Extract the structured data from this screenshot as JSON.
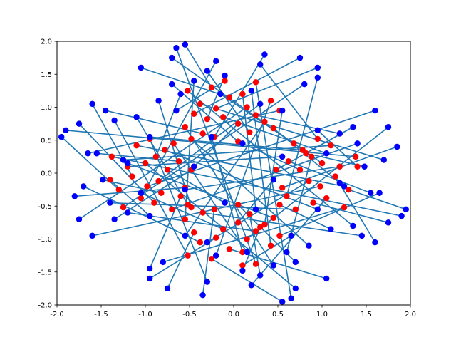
{
  "chart_data": {
    "type": "scatter",
    "title": "",
    "xlabel": "",
    "ylabel": "",
    "xlim": [
      -2.0,
      2.0
    ],
    "ylim": [
      -2.0,
      2.0
    ],
    "x_ticks": [
      "-2.0",
      "-1.5",
      "-1.0",
      "-0.5",
      "0.0",
      "0.5",
      "1.0",
      "1.5",
      "2.0"
    ],
    "y_ticks": [
      "-2.0",
      "-1.5",
      "-1.0",
      "-0.5",
      "0.0",
      "0.5",
      "1.0",
      "1.5",
      "2.0"
    ],
    "grid": false,
    "legend": "none",
    "colors": {
      "source_points": "#ff0000",
      "target_points": "#0000ff",
      "lines": "#1f77b4"
    },
    "cluster_centers": [
      [
        -0.9,
        0.0
      ],
      [
        0.9,
        0.0
      ],
      [
        0.0,
        0.9
      ],
      [
        0.0,
        -0.9
      ]
    ],
    "points": [
      {
        "red": [
          -0.62,
          0.18
        ],
        "blue": [
          -1.55,
          0.3
        ]
      },
      {
        "red": [
          -0.55,
          -0.22
        ],
        "blue": [
          -1.8,
          -0.35
        ]
      },
      {
        "red": [
          -0.78,
          0.35
        ],
        "blue": [
          0.95,
          -0.55
        ]
      },
      {
        "red": [
          -1.05,
          -0.38
        ],
        "blue": [
          -0.2,
          1.7
        ]
      },
      {
        "red": [
          -1.2,
          0.1
        ],
        "blue": [
          0.55,
          0.25
        ]
      },
      {
        "red": [
          -0.95,
          0.52
        ],
        "blue": [
          -0.3,
          -1.65
        ]
      },
      {
        "red": [
          -0.7,
          -0.55
        ],
        "blue": [
          1.4,
          0.45
        ]
      },
      {
        "red": [
          -1.3,
          -0.25
        ],
        "blue": [
          -1.95,
          0.55
        ]
      },
      {
        "red": [
          -0.85,
          -0.12
        ],
        "blue": [
          0.3,
          1.05
        ]
      },
      {
        "red": [
          -1.1,
          0.42
        ],
        "blue": [
          1.25,
          -0.2
        ]
      },
      {
        "red": [
          -0.48,
          0.05
        ],
        "blue": [
          -1.35,
          -0.7
        ]
      },
      {
        "red": [
          -0.88,
          0.25
        ],
        "blue": [
          -0.6,
          1.2
        ]
      },
      {
        "red": [
          -1.25,
          -0.52
        ],
        "blue": [
          0.8,
          1.35
        ]
      },
      {
        "red": [
          -0.6,
          -0.35
        ],
        "blue": [
          -0.95,
          -1.45
        ]
      },
      {
        "red": [
          -1.38,
          0.25
        ],
        "blue": [
          1.9,
          -0.65
        ]
      },
      {
        "red": [
          -0.75,
          0.05
        ],
        "blue": [
          -0.1,
          -0.45
        ]
      },
      {
        "red": [
          -0.98,
          -0.2
        ],
        "blue": [
          1.6,
          0.95
        ]
      },
      {
        "red": [
          -1.15,
          -0.05
        ],
        "blue": [
          -1.6,
          1.05
        ]
      },
      {
        "red": [
          -0.68,
          0.45
        ],
        "blue": [
          0.15,
          -1.2
        ]
      },
      {
        "red": [
          -0.9,
          -0.45
        ],
        "blue": [
          -1.75,
          0.75
        ]
      },
      {
        "red": [
          -1.0,
          0.15
        ],
        "blue": [
          0.7,
          -1.75
        ]
      },
      {
        "red": [
          -0.52,
          -0.48
        ],
        "blue": [
          -1.1,
          0.85
        ]
      },
      {
        "red": [
          0.62,
          0.18
        ],
        "blue": [
          1.55,
          -0.3
        ]
      },
      {
        "red": [
          0.55,
          -0.22
        ],
        "blue": [
          1.85,
          0.4
        ]
      },
      {
        "red": [
          0.78,
          0.35
        ],
        "blue": [
          -0.95,
          0.55
        ]
      },
      {
        "red": [
          1.05,
          -0.38
        ],
        "blue": [
          0.2,
          -1.7
        ]
      },
      {
        "red": [
          1.2,
          0.1
        ],
        "blue": [
          -0.55,
          -0.25
        ]
      },
      {
        "red": [
          0.95,
          0.52
        ],
        "blue": [
          0.3,
          1.65
        ]
      },
      {
        "red": [
          0.7,
          -0.55
        ],
        "blue": [
          -1.4,
          -0.45
        ]
      },
      {
        "red": [
          1.3,
          -0.25
        ],
        "blue": [
          1.95,
          -0.55
        ]
      },
      {
        "red": [
          0.85,
          -0.12
        ],
        "blue": [
          -0.3,
          -1.05
        ]
      },
      {
        "red": [
          1.1,
          0.42
        ],
        "blue": [
          -1.25,
          0.2
        ]
      },
      {
        "red": [
          0.48,
          0.05
        ],
        "blue": [
          1.35,
          0.7
        ]
      },
      {
        "red": [
          0.88,
          0.25
        ],
        "blue": [
          0.6,
          -1.2
        ]
      },
      {
        "red": [
          1.25,
          -0.52
        ],
        "blue": [
          -0.8,
          -1.35
        ]
      },
      {
        "red": [
          0.6,
          -0.35
        ],
        "blue": [
          0.95,
          1.45
        ]
      },
      {
        "red": [
          1.38,
          0.25
        ],
        "blue": [
          -1.9,
          0.65
        ]
      },
      {
        "red": [
          0.75,
          0.05
        ],
        "blue": [
          0.1,
          0.45
        ]
      },
      {
        "red": [
          0.98,
          -0.2
        ],
        "blue": [
          -1.6,
          -0.95
        ]
      },
      {
        "red": [
          1.15,
          -0.05
        ],
        "blue": [
          1.6,
          -1.05
        ]
      },
      {
        "red": [
          0.68,
          0.45
        ],
        "blue": [
          -0.15,
          1.2
        ]
      },
      {
        "red": [
          0.9,
          -0.45
        ],
        "blue": [
          1.75,
          -0.75
        ]
      },
      {
        "red": [
          1.0,
          0.15
        ],
        "blue": [
          -0.7,
          1.75
        ]
      },
      {
        "red": [
          0.52,
          -0.48
        ],
        "blue": [
          1.1,
          -0.85
        ]
      },
      {
        "red": [
          0.18,
          0.62
        ],
        "blue": [
          -0.3,
          1.55
        ]
      },
      {
        "red": [
          -0.22,
          0.55
        ],
        "blue": [
          0.35,
          1.8
        ]
      },
      {
        "red": [
          0.35,
          0.78
        ],
        "blue": [
          -0.55,
          -0.95
        ]
      },
      {
        "red": [
          -0.38,
          1.05
        ],
        "blue": [
          1.7,
          0.2
        ]
      },
      {
        "red": [
          0.1,
          1.2
        ],
        "blue": [
          0.25,
          -0.55
        ]
      },
      {
        "red": [
          0.52,
          0.95
        ],
        "blue": [
          -1.65,
          0.3
        ]
      },
      {
        "red": [
          -0.55,
          0.7
        ],
        "blue": [
          0.45,
          -1.4
        ]
      },
      {
        "red": [
          -0.25,
          1.3
        ],
        "blue": [
          -0.55,
          1.95
        ]
      },
      {
        "red": [
          -0.12,
          0.85
        ],
        "blue": [
          1.05,
          0.3
        ]
      },
      {
        "red": [
          0.42,
          1.1
        ],
        "blue": [
          -0.2,
          -1.25
        ]
      },
      {
        "red": [
          0.05,
          0.48
        ],
        "blue": [
          -0.7,
          1.35
        ]
      },
      {
        "red": [
          0.25,
          0.88
        ],
        "blue": [
          1.2,
          0.6
        ]
      },
      {
        "red": [
          -0.52,
          1.25
        ],
        "blue": [
          1.35,
          -0.8
        ]
      },
      {
        "red": [
          -0.35,
          0.6
        ],
        "blue": [
          -1.45,
          0.95
        ]
      },
      {
        "red": [
          0.25,
          1.38
        ],
        "blue": [
          0.65,
          -1.9
        ]
      },
      {
        "red": [
          0.05,
          0.75
        ],
        "blue": [
          -0.45,
          0.1
        ]
      },
      {
        "red": [
          -0.2,
          0.98
        ],
        "blue": [
          0.95,
          1.6
        ]
      },
      {
        "red": [
          -0.05,
          1.15
        ],
        "blue": [
          -1.05,
          1.6
        ]
      },
      {
        "red": [
          0.45,
          0.68
        ],
        "blue": [
          1.2,
          -0.15
        ]
      },
      {
        "red": [
          -0.45,
          0.9
        ],
        "blue": [
          0.75,
          1.75
        ]
      },
      {
        "red": [
          0.15,
          1.0
        ],
        "blue": [
          -1.75,
          -0.7
        ]
      },
      {
        "red": [
          -0.48,
          0.52
        ],
        "blue": [
          0.85,
          -1.1
        ]
      },
      {
        "red": [
          0.18,
          -0.62
        ],
        "blue": [
          0.3,
          -1.55
        ]
      },
      {
        "red": [
          -0.22,
          -0.55
        ],
        "blue": [
          -0.35,
          -1.85
        ]
      },
      {
        "red": [
          0.35,
          -0.78
        ],
        "blue": [
          0.55,
          0.95
        ]
      },
      {
        "red": [
          -0.38,
          -1.05
        ],
        "blue": [
          -1.7,
          -0.2
        ]
      },
      {
        "red": [
          0.1,
          -1.2
        ],
        "blue": [
          -0.25,
          0.55
        ]
      },
      {
        "red": [
          0.52,
          -0.95
        ],
        "blue": [
          1.65,
          -0.3
        ]
      },
      {
        "red": [
          -0.55,
          -0.7
        ],
        "blue": [
          -0.45,
          1.4
        ]
      },
      {
        "red": [
          -0.25,
          -1.3
        ],
        "blue": [
          0.55,
          -1.95
        ]
      },
      {
        "red": [
          -0.12,
          -0.85
        ],
        "blue": [
          -1.05,
          -0.3
        ]
      },
      {
        "red": [
          0.42,
          -1.1
        ],
        "blue": [
          0.2,
          1.25
        ]
      },
      {
        "red": [
          0.05,
          -0.48
        ],
        "blue": [
          0.7,
          -1.35
        ]
      },
      {
        "red": [
          0.25,
          -0.88
        ],
        "blue": [
          -1.2,
          -0.6
        ]
      },
      {
        "red": [
          -0.52,
          -1.25
        ],
        "blue": [
          -1.35,
          0.8
        ]
      },
      {
        "red": [
          -0.35,
          -0.6
        ],
        "blue": [
          1.45,
          -0.95
        ]
      },
      {
        "red": [
          0.25,
          -1.38
        ],
        "blue": [
          -0.65,
          1.9
        ]
      },
      {
        "red": [
          0.05,
          -0.75
        ],
        "blue": [
          0.45,
          -0.1
        ]
      },
      {
        "red": [
          -0.2,
          -0.98
        ],
        "blue": [
          -0.95,
          -1.6
        ]
      },
      {
        "red": [
          -0.05,
          -1.15
        ],
        "blue": [
          1.05,
          -1.6
        ]
      },
      {
        "red": [
          0.45,
          -0.68
        ],
        "blue": [
          -1.2,
          0.15
        ]
      },
      {
        "red": [
          -0.45,
          -0.9
        ],
        "blue": [
          -0.75,
          -1.75
        ]
      },
      {
        "red": [
          0.15,
          -1.0
        ],
        "blue": [
          1.75,
          0.7
        ]
      },
      {
        "red": [
          -0.48,
          -0.52
        ],
        "blue": [
          -0.85,
          1.1
        ]
      },
      {
        "red": [
          -0.82,
          -0.3
        ],
        "blue": [
          -1.48,
          -0.1
        ]
      },
      {
        "red": [
          0.82,
          0.3
        ],
        "blue": [
          1.48,
          0.1
        ]
      },
      {
        "red": [
          -0.3,
          0.82
        ],
        "blue": [
          -0.1,
          1.48
        ]
      },
      {
        "red": [
          0.3,
          -0.82
        ],
        "blue": [
          0.1,
          -1.48
        ]
      },
      {
        "red": [
          -1.4,
          -0.1
        ],
        "blue": [
          -0.95,
          -0.65
        ]
      },
      {
        "red": [
          1.4,
          0.1
        ],
        "blue": [
          0.95,
          0.65
        ]
      },
      {
        "red": [
          -0.1,
          1.4
        ],
        "blue": [
          -0.65,
          0.95
        ]
      },
      {
        "red": [
          0.1,
          -1.4
        ],
        "blue": [
          0.65,
          -0.95
        ]
      }
    ]
  }
}
